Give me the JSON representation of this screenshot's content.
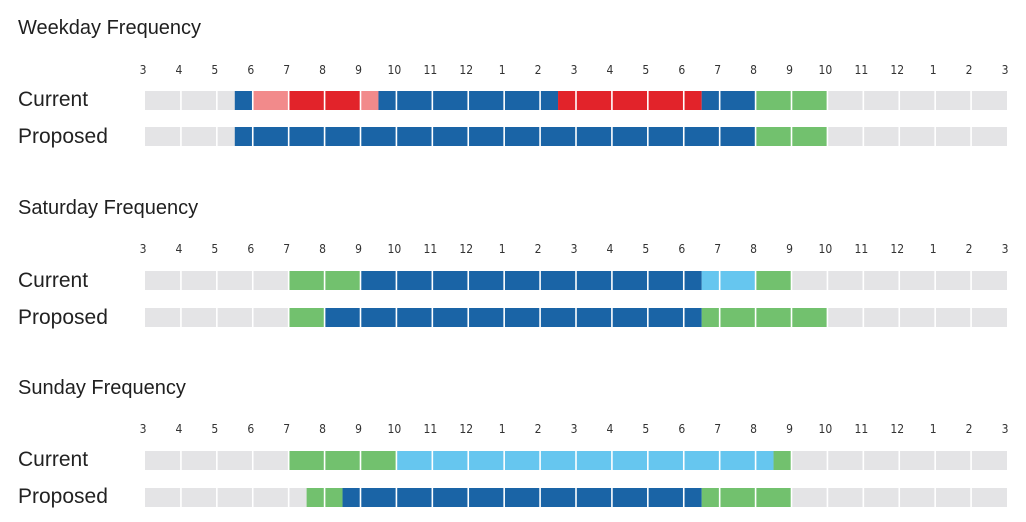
{
  "chart_data": {
    "type": "timeline",
    "note_colors": {
      "off": "#e4e4e6",
      "blue": "#1a64a6",
      "red": "#e2232a",
      "pink": "#f28a8b",
      "green": "#72c16e",
      "light_blue": "#66c6ef"
    },
    "tick_labels": [
      "3",
      "4",
      "5",
      "6",
      "7",
      "8",
      "9",
      "10",
      "11",
      "12",
      "1",
      "2",
      "3",
      "4",
      "5",
      "6",
      "7",
      "8",
      "9",
      "10",
      "11",
      "12",
      "1",
      "2",
      "3"
    ],
    "hour_start": 3,
    "hour_end": 27,
    "sections": [
      {
        "title": "Weekday Frequency",
        "rows": [
          {
            "label": "Current",
            "segments": [
              {
                "start": 5.5,
                "end": 6.0,
                "color": "blue"
              },
              {
                "start": 6.0,
                "end": 7.0,
                "color": "pink"
              },
              {
                "start": 7.0,
                "end": 9.0,
                "color": "red"
              },
              {
                "start": 9.0,
                "end": 9.5,
                "color": "pink"
              },
              {
                "start": 9.5,
                "end": 14.5,
                "color": "blue"
              },
              {
                "start": 14.5,
                "end": 18.5,
                "color": "red"
              },
              {
                "start": 18.5,
                "end": 20.0,
                "color": "blue"
              },
              {
                "start": 20.0,
                "end": 22.0,
                "color": "green"
              }
            ]
          },
          {
            "label": "Proposed",
            "segments": [
              {
                "start": 5.5,
                "end": 20.0,
                "color": "blue"
              },
              {
                "start": 20.0,
                "end": 22.0,
                "color": "green"
              }
            ]
          }
        ]
      },
      {
        "title": "Saturday Frequency",
        "rows": [
          {
            "label": "Current",
            "segments": [
              {
                "start": 7.0,
                "end": 9.0,
                "color": "green"
              },
              {
                "start": 9.0,
                "end": 18.5,
                "color": "blue"
              },
              {
                "start": 18.5,
                "end": 20.0,
                "color": "light_blue"
              },
              {
                "start": 20.0,
                "end": 21.0,
                "color": "green"
              }
            ]
          },
          {
            "label": "Proposed",
            "segments": [
              {
                "start": 7.0,
                "end": 8.0,
                "color": "green"
              },
              {
                "start": 8.0,
                "end": 18.5,
                "color": "blue"
              },
              {
                "start": 18.5,
                "end": 22.0,
                "color": "green"
              }
            ]
          }
        ]
      },
      {
        "title": "Sunday Frequency",
        "rows": [
          {
            "label": "Current",
            "segments": [
              {
                "start": 7.0,
                "end": 10.0,
                "color": "green"
              },
              {
                "start": 10.0,
                "end": 20.5,
                "color": "light_blue"
              },
              {
                "start": 20.5,
                "end": 21.0,
                "color": "green"
              }
            ]
          },
          {
            "label": "Proposed",
            "segments": [
              {
                "start": 7.5,
                "end": 8.5,
                "color": "green"
              },
              {
                "start": 8.5,
                "end": 18.5,
                "color": "blue"
              },
              {
                "start": 18.5,
                "end": 21.0,
                "color": "green"
              }
            ]
          }
        ]
      }
    ]
  }
}
